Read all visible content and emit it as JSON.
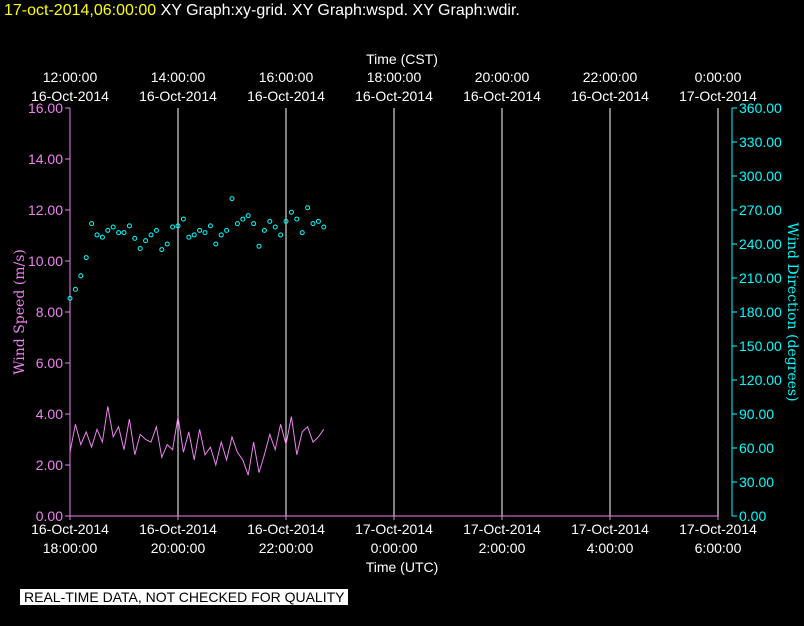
{
  "header": {
    "timestamp": "17-oct-2014,06:00:00",
    "graphs": "XY Graph:xy-grid.  XY Graph:wspd.  XY Graph:wdir."
  },
  "footer_note": "REAL-TIME DATA, NOT CHECKED FOR QUALITY",
  "chart_data": {
    "type": "scatter",
    "title": "",
    "top_axis": {
      "label": "Time (CST)",
      "ticks": [
        [
          "12:00:00",
          "16-Oct-2014"
        ],
        [
          "14:00:00",
          "16-Oct-2014"
        ],
        [
          "16:00:00",
          "16-Oct-2014"
        ],
        [
          "18:00:00",
          "16-Oct-2014"
        ],
        [
          "20:00:00",
          "16-Oct-2014"
        ],
        [
          "22:00:00",
          "16-Oct-2014"
        ],
        [
          "0:00:00",
          "17-Oct-2014"
        ]
      ]
    },
    "bottom_axis": {
      "label": "Time (UTC)",
      "ticks": [
        [
          "16-Oct-2014",
          "18:00:00"
        ],
        [
          "16-Oct-2014",
          "20:00:00"
        ],
        [
          "16-Oct-2014",
          "22:00:00"
        ],
        [
          "17-Oct-2014",
          "0:00:00"
        ],
        [
          "17-Oct-2014",
          "2:00:00"
        ],
        [
          "17-Oct-2014",
          "4:00:00"
        ],
        [
          "17-Oct-2014",
          "6:00:00"
        ]
      ],
      "range_hours_utc": [
        18,
        30
      ]
    },
    "left_axis": {
      "label": "Wind Speed (m/s)",
      "ticks": [
        "0.00",
        "2.00",
        "4.00",
        "6.00",
        "8.00",
        "10.00",
        "12.00",
        "14.00",
        "16.00"
      ],
      "range": [
        0,
        16
      ],
      "color": "#ee82ee"
    },
    "right_axis": {
      "label": "Wind Direction (degrees)",
      "ticks": [
        "0.00",
        "30.00",
        "60.00",
        "90.00",
        "120.00",
        "150.00",
        "180.00",
        "210.00",
        "240.00",
        "270.00",
        "300.00",
        "330.00",
        "360.00"
      ],
      "range": [
        0,
        360
      ],
      "color": "#00ffff"
    },
    "grid": true,
    "series": [
      {
        "type": "line",
        "axis": "left",
        "color": "#ee82ee",
        "x_hours_utc": [
          18.0,
          18.1,
          18.2,
          18.3,
          18.4,
          18.5,
          18.6,
          18.7,
          18.8,
          18.9,
          19.0,
          19.1,
          19.2,
          19.3,
          19.4,
          19.5,
          19.6,
          19.7,
          19.8,
          19.9,
          20.0,
          20.1,
          20.2,
          20.3,
          20.4,
          20.5,
          20.6,
          20.7,
          20.8,
          20.9,
          21.0,
          21.1,
          21.2,
          21.3,
          21.4,
          21.5,
          21.6,
          21.7,
          21.8,
          21.9,
          22.0,
          22.1,
          22.2,
          22.3,
          22.4,
          22.5,
          22.6,
          22.7
        ],
        "values": [
          2.5,
          3.6,
          2.8,
          3.3,
          2.7,
          3.4,
          2.9,
          4.3,
          3.1,
          3.5,
          2.6,
          3.8,
          2.4,
          3.2,
          3.0,
          2.9,
          3.5,
          2.3,
          2.8,
          2.6,
          3.9,
          2.5,
          3.3,
          2.2,
          3.4,
          2.4,
          2.7,
          2.0,
          2.9,
          2.2,
          3.1,
          2.5,
          2.2,
          1.6,
          2.9,
          1.7,
          2.4,
          3.2,
          2.6,
          3.6,
          2.8,
          3.9,
          2.4,
          3.3,
          3.5,
          2.9,
          3.1,
          3.4
        ]
      },
      {
        "type": "scatter",
        "axis": "right",
        "color": "#00ffff",
        "x_hours_utc": [
          18.0,
          18.1,
          18.2,
          18.3,
          18.4,
          18.5,
          18.6,
          18.7,
          18.8,
          18.9,
          19.0,
          19.1,
          19.2,
          19.3,
          19.4,
          19.5,
          19.6,
          19.7,
          19.8,
          19.9,
          20.0,
          20.1,
          20.2,
          20.3,
          20.4,
          20.5,
          20.6,
          20.7,
          20.8,
          20.9,
          21.0,
          21.1,
          21.2,
          21.3,
          21.4,
          21.5,
          21.6,
          21.7,
          21.8,
          21.9,
          22.0,
          22.1,
          22.2,
          22.3,
          22.4,
          22.5,
          22.6,
          22.7
        ],
        "values": [
          192,
          200,
          212,
          228,
          258,
          248,
          246,
          252,
          255,
          250,
          250,
          256,
          245,
          236,
          243,
          248,
          252,
          235,
          240,
          255,
          256,
          262,
          246,
          248,
          252,
          250,
          256,
          240,
          248,
          252,
          280,
          258,
          262,
          265,
          258,
          238,
          252,
          260,
          255,
          248,
          260,
          268,
          262,
          250,
          272,
          258,
          260,
          255
        ]
      }
    ]
  }
}
